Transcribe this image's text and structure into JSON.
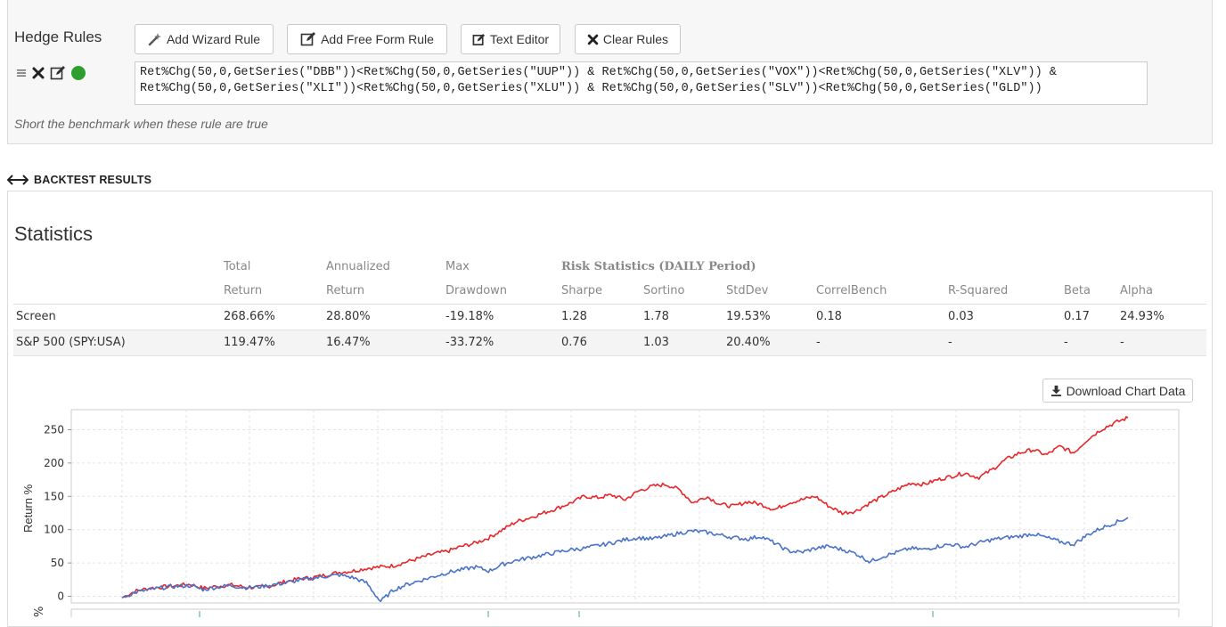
{
  "hedge_rules": {
    "title": "Hedge Rules",
    "buttons": {
      "add_wizard": "Add Wizard Rule",
      "add_free_form": "Add Free Form Rule",
      "text_editor": "Text Editor",
      "clear_rules": "Clear Rules"
    },
    "rule_text_line1": "Ret%Chg(50,0,GetSeries(\"DBB\"))<Ret%Chg(50,0,GetSeries(\"UUP\")) & Ret%Chg(50,0,GetSeries(\"VOX\"))<Ret%Chg(50,0,GetSeries(\"XLV\")) &",
    "rule_text_line2": "Ret%Chg(50,0,GetSeries(\"XLI\"))<Ret%Chg(50,0,GetSeries(\"XLU\")) & Ret%Chg(50,0,GetSeries(\"SLV\"))<Ret%Chg(50,0,GetSeries(\"GLD\"))",
    "hint": "Short the benchmark when these rule are true",
    "status_color": "#2e9e2e"
  },
  "backtest": {
    "section_title": "BACKTEST RESULTS",
    "stats_title": "Statistics",
    "headers_row1": [
      "",
      "Total",
      "Annualized",
      "Max",
      "Risk Statistics (DAILY Period)",
      "",
      "",
      "",
      "",
      "",
      ""
    ],
    "headers_row2": [
      "",
      "Return",
      "Return",
      "Drawdown",
      "Sharpe",
      "Sortino",
      "StdDev",
      "CorrelBench",
      "R-Squared",
      "Beta",
      "Alpha"
    ],
    "rows": [
      [
        "Screen",
        "268.66%",
        "28.80%",
        "-19.18%",
        "1.28",
        "1.78",
        "19.53%",
        "0.18",
        "0.03",
        "0.17",
        "24.93%"
      ],
      [
        "S&P 500 (SPY:USA)",
        "119.47%",
        "16.47%",
        "-33.72%",
        "0.76",
        "1.03",
        "20.40%",
        "-",
        "-",
        "-",
        "-"
      ]
    ],
    "download_label": "Download Chart Data"
  },
  "chart_data": {
    "type": "line",
    "ylabel": "Return %",
    "ylim": [
      -10,
      280
    ],
    "yticks": [
      0,
      50,
      100,
      150,
      200,
      250
    ],
    "grid": true,
    "series": [
      {
        "color": "#e8262a",
        "values": [
          -2,
          8,
          12,
          14,
          16,
          18,
          12,
          15,
          17,
          14,
          13,
          16,
          22,
          26,
          28,
          32,
          36,
          38,
          42,
          44,
          46,
          52,
          58,
          64,
          68,
          75,
          80,
          88,
          100,
          112,
          118,
          125,
          132,
          140,
          150,
          148,
          152,
          145,
          158,
          165,
          168,
          160,
          140,
          150,
          138,
          135,
          142,
          138,
          130,
          140,
          145,
          150,
          135,
          125,
          128,
          140,
          150,
          160,
          170,
          168,
          175,
          180,
          185,
          178,
          190,
          205,
          215,
          220,
          212,
          225,
          215,
          235,
          250,
          260,
          268
        ]
      },
      {
        "color": "#4a72c9",
        "values": [
          -2,
          6,
          10,
          13,
          15,
          16,
          10,
          14,
          16,
          13,
          14,
          17,
          20,
          24,
          27,
          30,
          32,
          28,
          20,
          -8,
          10,
          18,
          24,
          30,
          36,
          40,
          44,
          38,
          48,
          54,
          58,
          62,
          66,
          70,
          72,
          76,
          80,
          85,
          88,
          86,
          90,
          95,
          98,
          96,
          92,
          88,
          86,
          90,
          80,
          68,
          66,
          72,
          75,
          70,
          64,
          52,
          60,
          66,
          72,
          70,
          75,
          78,
          74,
          80,
          85,
          88,
          90,
          94,
          88,
          82,
          78,
          92,
          102,
          110,
          118
        ]
      }
    ]
  }
}
